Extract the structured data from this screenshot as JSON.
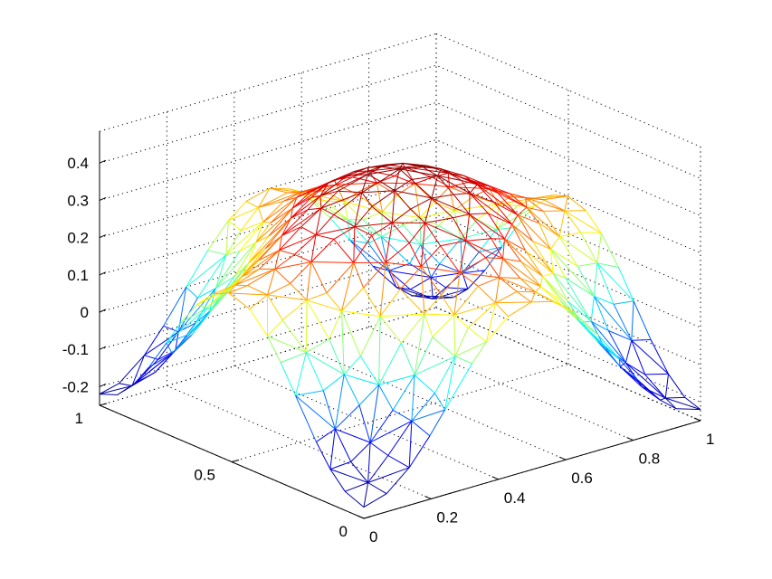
{
  "chart_data": {
    "type": "surface-mesh",
    "title": "",
    "xlabel": "",
    "ylabel": "",
    "zlabel": "",
    "xlim": [
      0,
      1
    ],
    "ylim": [
      0,
      1
    ],
    "zlim": [
      -0.25,
      0.4
    ],
    "x_ticks": [
      {
        "value": 0,
        "label": "0"
      },
      {
        "value": 0.2,
        "label": "0.2"
      },
      {
        "value": 0.4,
        "label": "0.4"
      },
      {
        "value": 0.6,
        "label": "0.6"
      },
      {
        "value": 0.8,
        "label": "0.8"
      },
      {
        "value": 1,
        "label": "1"
      }
    ],
    "y_ticks": [
      {
        "value": 0,
        "label": "0"
      },
      {
        "value": 0.5,
        "label": "0.5"
      },
      {
        "value": 1,
        "label": "1"
      }
    ],
    "z_ticks": [
      {
        "value": -0.2,
        "label": "-0.2"
      },
      {
        "value": -0.1,
        "label": "-0.1"
      },
      {
        "value": 0,
        "label": "0"
      },
      {
        "value": 0.1,
        "label": "0.1"
      },
      {
        "value": 0.2,
        "label": "0.2"
      },
      {
        "value": 0.3,
        "label": "0.3"
      },
      {
        "value": 0.4,
        "label": "0.4"
      }
    ],
    "grid": true,
    "colormap": [
      "#00008f",
      "#0000ff",
      "#00ffff",
      "#ffff00",
      "#ff0000",
      "#800000"
    ],
    "surface": {
      "description_points": [
        {
          "x": 0,
          "y": 0,
          "z": -0.22
        },
        {
          "x": 1,
          "y": 0,
          "z": -0.22
        },
        {
          "x": 0,
          "y": 1,
          "z": -0.22
        },
        {
          "x": 1,
          "y": 1,
          "z": -0.22
        },
        {
          "x": 0.5,
          "y": 0.5,
          "z": 0.4
        },
        {
          "x": 0.5,
          "y": 0,
          "z": 0.2
        },
        {
          "x": 0,
          "y": 0.5,
          "z": 0.2
        },
        {
          "x": 1,
          "y": 0.5,
          "z": 0.2
        },
        {
          "x": 0.5,
          "y": 1,
          "z": 0.2
        }
      ],
      "grid_size": 16
    }
  }
}
